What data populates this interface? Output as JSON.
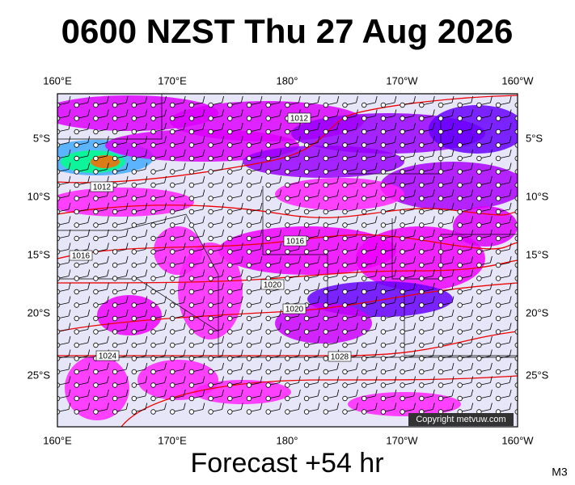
{
  "header": {
    "title": "0600 NZST Thu 27 Aug 2026"
  },
  "map": {
    "longitudes": [
      "160°E",
      "170°E",
      "180°",
      "170°W",
      "160°W"
    ],
    "latitudes": [
      "5°S",
      "10°S",
      "15°S",
      "20°S",
      "25°S"
    ],
    "isobar_labels": [
      "1012",
      "1012",
      "1016",
      "1016",
      "1020",
      "1020",
      "1024",
      "1028"
    ],
    "copyright": "Copyright metvuw.com"
  },
  "footer": {
    "forecast": "Forecast +54 hr",
    "code": "M3"
  }
}
